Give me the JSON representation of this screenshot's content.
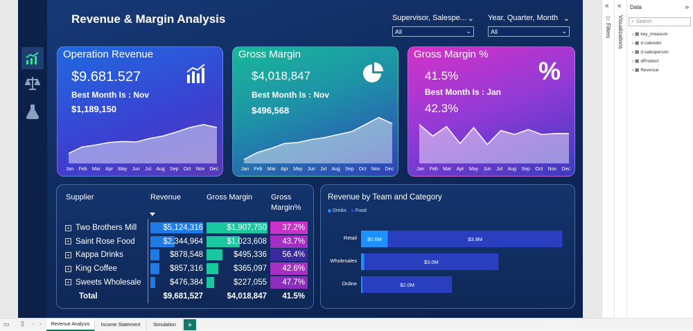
{
  "report": {
    "title": "Revenue & Margin Analysis",
    "slicers": [
      {
        "label": "Supervisor, Salespe...",
        "value": "All"
      },
      {
        "label": "Year, Quarter, Month",
        "value": "All"
      }
    ],
    "nav_icons": [
      "chart-growth-icon",
      "scales-icon",
      "flask-icon"
    ]
  },
  "months": [
    "Jan",
    "Feb",
    "Mar",
    "Apr",
    "May",
    "Jun",
    "Jul",
    "Aug",
    "Sep",
    "Oct",
    "Nov",
    "Dec"
  ],
  "cards": {
    "revenue": {
      "title": "Operation Revenue",
      "value": "$9.681.527",
      "best_label": "Best Month Is : Nov",
      "best_value": "$1,189,150",
      "icon": "bar-chart-icon",
      "trend": [
        0.2,
        0.33,
        0.37,
        0.42,
        0.44,
        0.43,
        0.5,
        0.55,
        0.63,
        0.72,
        0.78,
        0.72
      ]
    },
    "margin": {
      "title": "Gross Margin",
      "value": "$4,018,847",
      "best_label": "Best Month Is : Nov",
      "best_value": "$496,568",
      "icon": "pie-chart-icon",
      "trend": [
        0.08,
        0.22,
        0.3,
        0.4,
        0.42,
        0.48,
        0.52,
        0.58,
        0.64,
        0.78,
        0.92,
        0.8
      ]
    },
    "margin_pct": {
      "title": "Gross Margin %",
      "value": "41.5%",
      "best_label": "Best Month Is : Jan",
      "best_value": "42.3%",
      "icon": "percent-icon",
      "trend": [
        0.78,
        0.55,
        0.74,
        0.4,
        0.72,
        0.38,
        0.66,
        0.58,
        0.68,
        0.58,
        0.6,
        0.6
      ]
    }
  },
  "supplier_table": {
    "headers": {
      "supplier": "Supplier",
      "revenue": "Revenue",
      "gm": "Gross Margin",
      "gmpct_1": "Gross",
      "gmpct_2": "Margin%"
    },
    "rows": [
      {
        "name": "Two Brothers Mill",
        "revenue": "$5,124,316",
        "gm": "$1,907,750",
        "gmpct": "37.2%",
        "rev_ratio": 1.0,
        "gm_ratio": 1.0,
        "pct_shade": 0.0
      },
      {
        "name": "Saint Rose Food",
        "revenue": "$2,344,964",
        "gm": "$1,023,608",
        "gmpct": "43.7%",
        "rev_ratio": 0.46,
        "gm_ratio": 0.54,
        "pct_shade": 0.35
      },
      {
        "name": "Kappa Drinks",
        "revenue": "$878,548",
        "gm": "$495,336",
        "gmpct": "56.4%",
        "rev_ratio": 0.17,
        "gm_ratio": 0.26,
        "pct_shade": 1.0
      },
      {
        "name": "King Coffee",
        "revenue": "$857,316",
        "gm": "$365,097",
        "gmpct": "42.6%",
        "rev_ratio": 0.17,
        "gm_ratio": 0.19,
        "pct_shade": 0.3
      },
      {
        "name": "Sweets Wholesale",
        "revenue": "$476,384",
        "gm": "$227,055",
        "gmpct": "47.7%",
        "rev_ratio": 0.09,
        "gm_ratio": 0.12,
        "pct_shade": 0.55
      }
    ],
    "total": {
      "name": "Total",
      "revenue": "$9,681,527",
      "gm": "$4,018,847",
      "gmpct": "41.5%"
    }
  },
  "team_chart": {
    "title": "Revenue by Team and Category",
    "legend": [
      {
        "name": "Drinks",
        "color": "#1e90ff"
      },
      {
        "name": "Food",
        "color": "#2a3fbf"
      }
    ],
    "chart_data": {
      "type": "bar",
      "categories": [
        "Retail",
        "Wholesales",
        "Online"
      ],
      "series": [
        {
          "name": "Drinks",
          "values": [
            0.6,
            0.07,
            0.02
          ],
          "labels": [
            "$0.6M",
            "",
            ""
          ]
        },
        {
          "name": "Food",
          "values": [
            3.9,
            3.0,
            2.0
          ],
          "labels": [
            "$3.9M",
            "$3.0M",
            "$2.0M"
          ]
        }
      ],
      "xlim": [
        0,
        4.6
      ]
    }
  },
  "side_panels": {
    "filters": "Filters",
    "visualizations": "Visualizations",
    "data_title": "Data",
    "search_placeholder": "Search",
    "fields": [
      "key_measure",
      "d calender",
      "d salesperson",
      "dProduct",
      "Revenue"
    ]
  },
  "pages": [
    "Revenue Analysis",
    "Income Statement",
    "Simulation"
  ],
  "add_page": "+"
}
